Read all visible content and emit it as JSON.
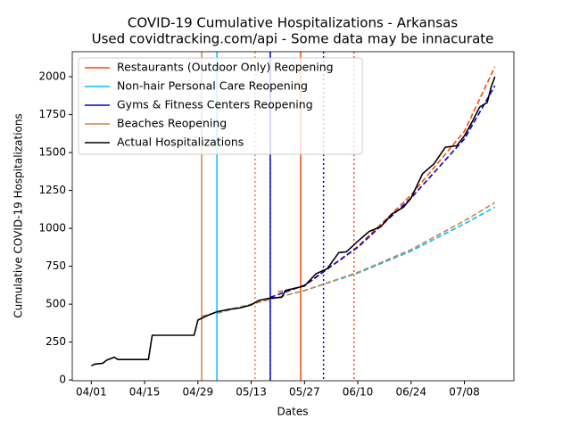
{
  "chart_data": {
    "type": "line",
    "title": "COVID-19 Cumulative Hospitalizations - Arkansas",
    "subtitle": "Used covidtracking.com/api - Some data may be innacurate",
    "x_label": "Dates",
    "y_label": "Cumulative COVID-19 Hospitalizations",
    "xlim": [
      "03/27",
      "07/21"
    ],
    "xticks": [
      "04/01",
      "04/15",
      "04/29",
      "05/13",
      "05/27",
      "06/10",
      "06/24",
      "07/08"
    ],
    "ylim": [
      -5,
      2165
    ],
    "yticks": [
      0,
      250,
      500,
      750,
      1000,
      1250,
      1500,
      1750,
      2000
    ],
    "legend": "upper left",
    "series": [
      {
        "name": "Restaurants (Outdoor Only) Reopening",
        "color": "#ff4500",
        "reopening": "05/26",
        "two_weeks_later": "06/09",
        "projection": {
          "x": [
            "05/20",
            "05/27",
            "06/10",
            "06/24",
            "07/08",
            "07/16"
          ],
          "values": [
            580,
            620,
            880,
            1220,
            1640,
            2065
          ]
        }
      },
      {
        "name": "Non-hair Personal Care Reopening",
        "color": "#00bfff",
        "reopening": "05/04",
        "two_weeks_later": "05/18",
        "projection": {
          "x": [
            "05/04",
            "05/13",
            "05/27",
            "06/10",
            "06/24",
            "07/08",
            "07/16"
          ],
          "values": [
            440,
            500,
            590,
            705,
            850,
            1030,
            1140
          ]
        }
      },
      {
        "name": "Gyms & Fitness Centers Reopening",
        "color": "#0000cd",
        "reopening": "05/18",
        "two_weeks_later": "06/01",
        "projection": {
          "x": [
            "05/18",
            "05/27",
            "06/10",
            "06/24",
            "07/08",
            "07/16"
          ],
          "values": [
            545,
            625,
            875,
            1200,
            1590,
            1940
          ]
        }
      },
      {
        "name": "Beaches Reopening",
        "color": "#cd853f",
        "reopening": "04/30",
        "two_weeks_later": "05/14",
        "projection": {
          "x": [
            "04/30",
            "05/13",
            "05/27",
            "06/10",
            "06/24",
            "07/08",
            "07/16"
          ],
          "values": [
            420,
            500,
            590,
            710,
            860,
            1050,
            1170
          ]
        }
      },
      {
        "name": "Actual Hospitalizations",
        "color": "#000000",
        "x": [
          "04/01",
          "04/02",
          "04/04",
          "04/05",
          "04/07",
          "04/08",
          "04/16",
          "04/17",
          "04/28",
          "04/29",
          "05/01",
          "05/04",
          "05/07",
          "05/10",
          "05/13",
          "05/15",
          "05/18",
          "05/21",
          "05/22",
          "05/27",
          "05/30",
          "06/02",
          "06/05",
          "06/07",
          "06/10",
          "06/13",
          "06/16",
          "06/19",
          "06/22",
          "06/24",
          "06/27",
          "06/30",
          "07/03",
          "07/06",
          "07/08",
          "07/10",
          "07/12",
          "07/14",
          "07/15",
          "07/16"
        ],
        "values": [
          94,
          105,
          110,
          130,
          150,
          135,
          135,
          295,
          295,
          395,
          420,
          450,
          465,
          475,
          495,
          525,
          540,
          545,
          590,
          620,
          700,
          735,
          840,
          845,
          915,
          980,
          1010,
          1095,
          1140,
          1200,
          1360,
          1425,
          1535,
          1545,
          1610,
          1700,
          1800,
          1830,
          1930,
          2000
        ]
      }
    ]
  }
}
